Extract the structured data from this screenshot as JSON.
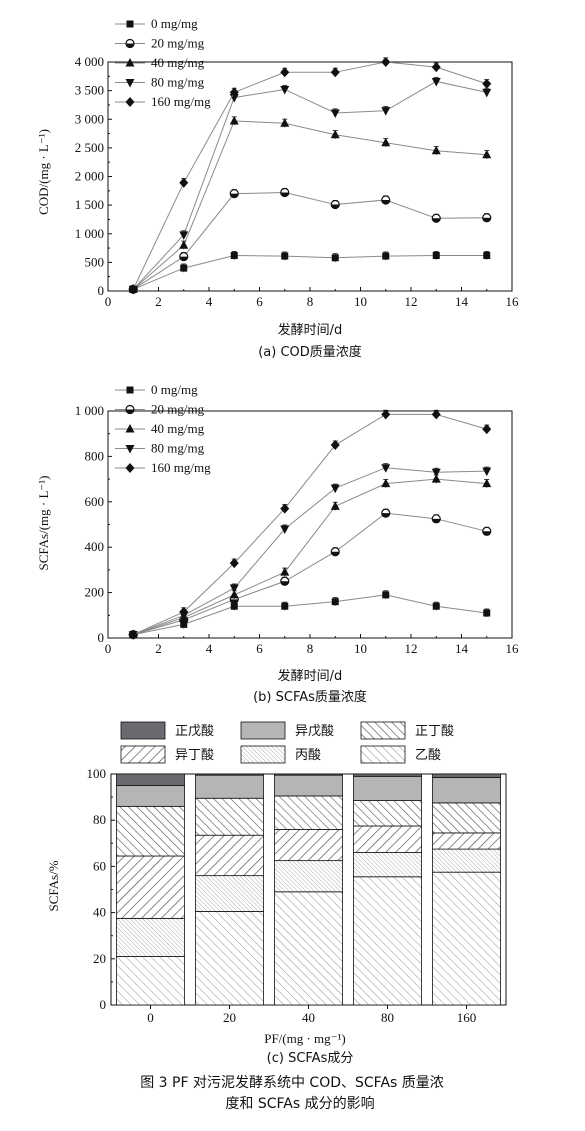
{
  "figure_caption_line1": "图 3   PF 对污泥发酵系统中 COD、SCFAs 质量浓",
  "figure_caption_line2": "度和 SCFAs 成分的影响",
  "chart_data": [
    {
      "type": "line",
      "caption": "(a) COD质量浓度",
      "xlabel": "发酵时间/d",
      "ylabel": "COD/(mg · L⁻¹)",
      "xlim": [
        0,
        16
      ],
      "ylim": [
        0,
        4000
      ],
      "xticks": [
        "0",
        "2",
        "4",
        "6",
        "8",
        "10",
        "12",
        "14",
        "16"
      ],
      "yticks": [
        "0",
        "500",
        "1 000",
        "1 500",
        "2 000",
        "2 500",
        "3 000",
        "3 500",
        "4 000"
      ],
      "legend_position": "top-left",
      "x": [
        1,
        3,
        5,
        7,
        9,
        11,
        13,
        15
      ],
      "series": [
        {
          "name": "0 mg/mg",
          "marker": "square",
          "values": [
            30,
            400,
            620,
            610,
            580,
            610,
            620,
            620
          ]
        },
        {
          "name": "20 mg/mg",
          "marker": "half-circle",
          "values": [
            30,
            600,
            1700,
            1720,
            1510,
            1590,
            1270,
            1280
          ]
        },
        {
          "name": "40 mg/mg",
          "marker": "triangle-up",
          "values": [
            30,
            800,
            2970,
            2930,
            2730,
            2590,
            2450,
            2380
          ]
        },
        {
          "name": "80 mg/mg",
          "marker": "triangle-down",
          "values": [
            30,
            980,
            3380,
            3520,
            3110,
            3150,
            3660,
            3470
          ]
        },
        {
          "name": "160 mg/mg",
          "marker": "diamond",
          "values": [
            30,
            1890,
            3470,
            3820,
            3820,
            4000,
            3910,
            3620
          ]
        }
      ]
    },
    {
      "type": "line",
      "caption": "(b) SCFAs质量浓度",
      "xlabel": "发酵时间/d",
      "ylabel": "SCFAs/(mg · L⁻¹)",
      "xlim": [
        0,
        16
      ],
      "ylim": [
        0,
        1000
      ],
      "xticks": [
        "0",
        "2",
        "4",
        "6",
        "8",
        "10",
        "12",
        "14",
        "16"
      ],
      "yticks": [
        "0",
        "200",
        "400",
        "600",
        "800",
        "1 000"
      ],
      "legend_position": "top-left",
      "x": [
        1,
        3,
        5,
        7,
        9,
        11,
        13,
        15
      ],
      "series": [
        {
          "name": "0 mg/mg",
          "marker": "square",
          "values": [
            15,
            60,
            140,
            140,
            160,
            190,
            140,
            110
          ]
        },
        {
          "name": "20 mg/mg",
          "marker": "half-circle",
          "values": [
            15,
            80,
            170,
            250,
            380,
            550,
            525,
            470
          ]
        },
        {
          "name": "40 mg/mg",
          "marker": "triangle-up",
          "values": [
            15,
            90,
            190,
            290,
            580,
            680,
            700,
            680
          ]
        },
        {
          "name": "80 mg/mg",
          "marker": "triangle-down",
          "values": [
            15,
            100,
            220,
            480,
            660,
            750,
            730,
            735
          ]
        },
        {
          "name": "160 mg/mg",
          "marker": "diamond",
          "values": [
            15,
            115,
            330,
            570,
            850,
            985,
            985,
            920
          ]
        }
      ]
    },
    {
      "type": "bar",
      "stacked": true,
      "caption": "(c) SCFAs成分",
      "xlabel": "PF/(mg · mg⁻¹)",
      "ylabel": "SCFAs/%",
      "ylim": [
        0,
        100
      ],
      "yticks": [
        "0",
        "20",
        "40",
        "60",
        "80",
        "100"
      ],
      "categories": [
        "0",
        "20",
        "40",
        "80",
        "160"
      ],
      "legend_position": "top",
      "series": [
        {
          "name": "乙酸",
          "pattern": "diag-light",
          "values": [
            21,
            40.5,
            49,
            55.5,
            57.5
          ]
        },
        {
          "name": "丙酸",
          "pattern": "diag-light-dense",
          "values": [
            16.5,
            15.5,
            13.5,
            10.5,
            10
          ]
        },
        {
          "name": "异丁酸",
          "pattern": "diag-back",
          "values": [
            27,
            17.5,
            13.5,
            11.5,
            7
          ]
        },
        {
          "name": "正丁酸",
          "pattern": "diag-fwd",
          "values": [
            21.5,
            16,
            14.5,
            11,
            13
          ]
        },
        {
          "name": "异戊酸",
          "pattern": "light-gray",
          "values": [
            9,
            10,
            9,
            10.5,
            11
          ]
        },
        {
          "name": "正戊酸",
          "pattern": "dark-gray",
          "values": [
            5,
            0.5,
            0.5,
            1,
            1.5
          ]
        }
      ]
    }
  ],
  "colors": {
    "ink": "#111111",
    "light_gray": "#b5b5b5",
    "dark_gray": "#6a6a70"
  }
}
